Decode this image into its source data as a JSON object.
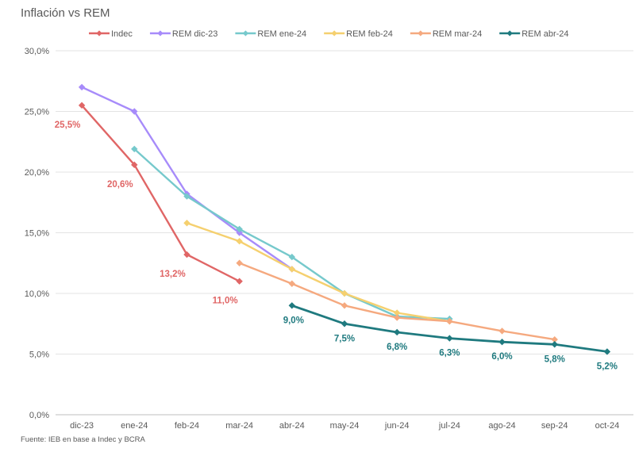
{
  "chart_data": {
    "type": "line",
    "title": "Inflación vs REM",
    "source": "Fuente: IEB en base a Indec y BCRA",
    "xlabel": "",
    "ylabel": "",
    "categories": [
      "dic-23",
      "ene-24",
      "feb-24",
      "mar-24",
      "abr-24",
      "may-24",
      "jun-24",
      "jul-24",
      "ago-24",
      "sep-24",
      "oct-24"
    ],
    "ylim": [
      0,
      30
    ],
    "yticks": [
      {
        "v": 0,
        "label": "0,0%"
      },
      {
        "v": 5,
        "label": "5,0%"
      },
      {
        "v": 10,
        "label": "10,0%"
      },
      {
        "v": 15,
        "label": "15,0%"
      },
      {
        "v": 20,
        "label": "20,0%"
      },
      {
        "v": 25,
        "label": "25,0%"
      },
      {
        "v": 30,
        "label": "30,0%"
      }
    ],
    "grid": true,
    "legend_position": "top",
    "series": [
      {
        "name": "Indec",
        "color": "#E06666",
        "values": [
          25.5,
          20.6,
          13.2,
          11.0,
          null,
          null,
          null,
          null,
          null,
          null,
          null
        ],
        "labels": [
          "25,5%",
          "20,6%",
          "13,2%",
          "11,0%",
          null,
          null,
          null,
          null,
          null,
          null,
          null
        ]
      },
      {
        "name": "REM dic-23",
        "color": "#A78BFA",
        "values": [
          27.0,
          25.0,
          18.2,
          15.0,
          12.0,
          null,
          null,
          null,
          null,
          null,
          null
        ],
        "labels": []
      },
      {
        "name": "REM ene-24",
        "color": "#76C9CC",
        "values": [
          null,
          21.9,
          18.0,
          15.3,
          13.0,
          10.0,
          8.1,
          7.9,
          null,
          null,
          null
        ],
        "labels": []
      },
      {
        "name": "REM feb-24",
        "color": "#F5D06F",
        "values": [
          null,
          null,
          15.8,
          14.3,
          12.0,
          10.0,
          8.4,
          7.7,
          null,
          null,
          null
        ],
        "labels": []
      },
      {
        "name": "REM mar-24",
        "color": "#F5A97F",
        "values": [
          null,
          null,
          null,
          12.5,
          10.8,
          9.0,
          8.0,
          7.7,
          6.9,
          6.2,
          null
        ],
        "labels": []
      },
      {
        "name": "REM abr-24",
        "color": "#1F7A7F",
        "values": [
          null,
          null,
          null,
          null,
          9.0,
          7.5,
          6.8,
          6.3,
          6.0,
          5.8,
          5.2
        ],
        "labels": [
          null,
          null,
          null,
          null,
          "9,0%",
          "7,5%",
          "6,8%",
          "6,3%",
          "6,0%",
          "5,8%",
          "5,2%"
        ]
      }
    ]
  }
}
